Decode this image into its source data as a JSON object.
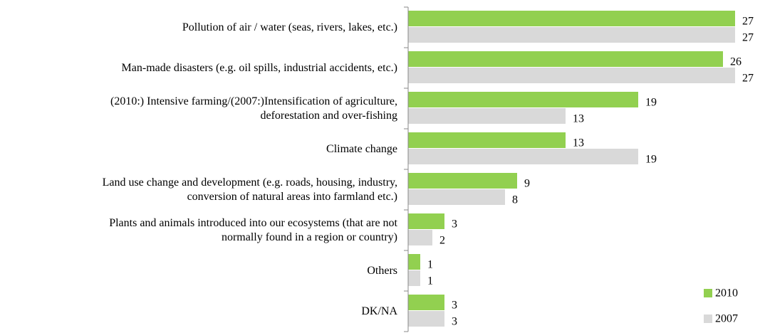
{
  "chart_data": {
    "type": "bar",
    "orientation": "horizontal",
    "categories": [
      "Pollution of air / water (seas, rivers, lakes, etc.)",
      "Man-made disasters (e.g. oil spills, industrial accidents, etc.)",
      "(2010:) Intensive farming/(2007:)Intensification of agriculture,\ndeforestation and over-fishing",
      "Climate change",
      "Land use change and development (e.g. roads, housing, industry,\nconversion of natural areas into farmland etc.)",
      "Plants and animals introduced into our ecosystems (that are not\nnormally found in a region or country)",
      "Others",
      "DK/NA"
    ],
    "series": [
      {
        "name": "2010",
        "color": "#92d050",
        "values": [
          27,
          26,
          19,
          13,
          9,
          3,
          1,
          3
        ]
      },
      {
        "name": "2007",
        "color": "#d9d9d9",
        "values": [
          27,
          27,
          13,
          19,
          8,
          2,
          1,
          3
        ]
      }
    ],
    "xlim": [
      0,
      27
    ],
    "legend": "bottom-right"
  }
}
